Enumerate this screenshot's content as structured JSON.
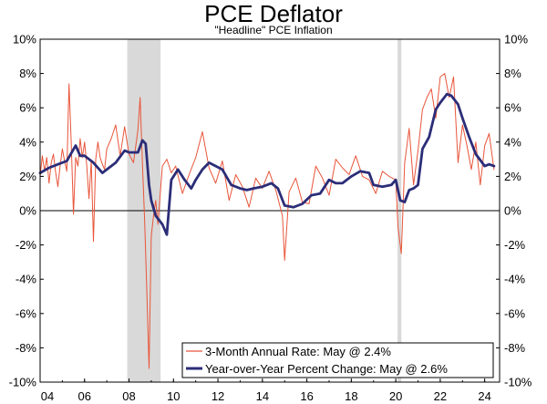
{
  "title": "PCE Deflator",
  "subtitle": "\"Headline\" PCE Inflation",
  "colors": {
    "series1": "#e8553a",
    "series2": "#2b2d78",
    "recession": "#d9d9d9",
    "zero_line": "#000000"
  },
  "chart_data": {
    "type": "line",
    "title": "PCE Deflator",
    "subtitle": "\"Headline\" PCE Inflation",
    "x_range": [
      2004.0,
      2024.67
    ],
    "ylim": [
      -10,
      10
    ],
    "y_ticks": [
      10,
      8,
      6,
      4,
      2,
      0,
      -2,
      -4,
      -6,
      -8,
      -10
    ],
    "y_tick_labels": [
      "10%",
      "8%",
      "6%",
      "4%",
      "2%",
      "0%",
      "-2%",
      "-4%",
      "-6%",
      "-8%",
      "-10%"
    ],
    "x_ticks": [
      2004,
      2006,
      2008,
      2010,
      2012,
      2014,
      2016,
      2018,
      2020,
      2022,
      2024
    ],
    "x_tick_labels": [
      "04",
      "06",
      "08",
      "10",
      "12",
      "14",
      "16",
      "18",
      "20",
      "22",
      "24"
    ],
    "recessions": [
      [
        2007.92,
        2009.42
      ],
      [
        2020.08,
        2020.25
      ]
    ],
    "legend": {
      "position": "bottom-right",
      "entries": [
        "3-Month Annual Rate: May @ 2.4%",
        "Year-over-Year Percent Change: May @ 2.6%"
      ]
    },
    "series": [
      {
        "name": "3-Month Annual Rate: May @ 2.4%",
        "x": [
          2004.0,
          2004.1,
          2004.2,
          2004.3,
          2004.4,
          2004.5,
          2004.6,
          2004.7,
          2004.8,
          2004.9,
          2005.0,
          2005.1,
          2005.2,
          2005.3,
          2005.4,
          2005.5,
          2005.6,
          2005.7,
          2005.8,
          2005.9,
          2006.0,
          2006.1,
          2006.2,
          2006.3,
          2006.4,
          2006.5,
          2006.6,
          2006.7,
          2006.8,
          2006.9,
          2007.0,
          2007.2,
          2007.4,
          2007.6,
          2007.8,
          2008.0,
          2008.2,
          2008.4,
          2008.5,
          2008.6,
          2008.7,
          2008.8,
          2008.9,
          2009.0,
          2009.1,
          2009.2,
          2009.3,
          2009.5,
          2009.7,
          2009.9,
          2010.1,
          2010.4,
          2010.7,
          2011.0,
          2011.3,
          2011.6,
          2011.9,
          2012.2,
          2012.5,
          2012.8,
          2013.1,
          2013.4,
          2013.7,
          2014.0,
          2014.3,
          2014.6,
          2014.9,
          2015.0,
          2015.2,
          2015.5,
          2015.8,
          2016.1,
          2016.4,
          2016.7,
          2017.0,
          2017.3,
          2017.6,
          2017.9,
          2018.2,
          2018.5,
          2018.8,
          2019.1,
          2019.4,
          2019.7,
          2020.0,
          2020.1,
          2020.25,
          2020.4,
          2020.6,
          2020.8,
          2021.0,
          2021.2,
          2021.4,
          2021.6,
          2021.8,
          2022.0,
          2022.2,
          2022.4,
          2022.6,
          2022.8,
          2023.0,
          2023.2,
          2023.4,
          2023.6,
          2023.8,
          2024.0,
          2024.2,
          2024.42
        ],
        "values": [
          2.0,
          3.2,
          2.3,
          3.1,
          1.6,
          2.8,
          3.3,
          2.2,
          1.4,
          2.6,
          3.6,
          2.9,
          2.3,
          7.4,
          4.0,
          -0.2,
          3.1,
          2.6,
          4.2,
          3.1,
          4.0,
          2.6,
          0.7,
          2.9,
          -1.8,
          3.0,
          4.0,
          3.1,
          2.7,
          2.4,
          3.6,
          4.2,
          5.0,
          3.2,
          4.9,
          3.3,
          2.8,
          4.7,
          6.6,
          2.8,
          -0.5,
          -4.6,
          -9.2,
          -1.5,
          -0.3,
          0.6,
          -0.8,
          2.6,
          3.0,
          2.2,
          2.6,
          1.0,
          2.1,
          3.1,
          4.6,
          2.5,
          1.6,
          2.9,
          0.6,
          2.1,
          1.4,
          0.2,
          1.9,
          1.3,
          2.3,
          1.2,
          -0.3,
          -2.9,
          1.1,
          1.9,
          0.5,
          0.4,
          2.6,
          1.9,
          0.9,
          3.0,
          2.5,
          2.1,
          3.2,
          2.0,
          1.8,
          1.0,
          2.3,
          2.0,
          1.8,
          -1.0,
          -2.5,
          2.8,
          4.8,
          1.5,
          3.5,
          5.9,
          6.6,
          7.1,
          5.4,
          7.8,
          8.0,
          6.6,
          7.8,
          2.8,
          5.0,
          3.8,
          2.4,
          4.0,
          1.5,
          3.8,
          4.5,
          2.4
        ]
      },
      {
        "name": "Year-over-Year Percent Change: May @ 2.6%",
        "x": [
          2004.0,
          2004.4,
          2004.8,
          2005.2,
          2005.6,
          2005.8,
          2006.0,
          2006.4,
          2006.8,
          2007.0,
          2007.4,
          2007.8,
          2008.0,
          2008.4,
          2008.6,
          2008.75,
          2008.9,
          2009.0,
          2009.2,
          2009.5,
          2009.7,
          2009.9,
          2010.2,
          2010.5,
          2010.8,
          2011.0,
          2011.3,
          2011.6,
          2011.9,
          2012.2,
          2012.6,
          2013.0,
          2013.3,
          2013.6,
          2014.0,
          2014.4,
          2014.7,
          2015.0,
          2015.4,
          2015.8,
          2016.2,
          2016.6,
          2017.0,
          2017.3,
          2017.6,
          2018.0,
          2018.4,
          2018.8,
          2019.0,
          2019.4,
          2019.8,
          2020.0,
          2020.2,
          2020.4,
          2020.6,
          2020.8,
          2021.0,
          2021.2,
          2021.5,
          2021.8,
          2022.0,
          2022.3,
          2022.5,
          2022.8,
          2023.0,
          2023.3,
          2023.6,
          2024.0,
          2024.2,
          2024.42
        ],
        "values": [
          2.2,
          2.5,
          2.7,
          2.9,
          3.8,
          3.2,
          3.2,
          2.8,
          2.2,
          2.4,
          2.8,
          3.5,
          3.4,
          3.4,
          4.1,
          3.9,
          1.5,
          0.6,
          -0.3,
          -0.8,
          -1.4,
          1.8,
          2.4,
          1.8,
          1.3,
          1.8,
          2.4,
          2.8,
          2.6,
          2.4,
          1.5,
          1.3,
          1.2,
          1.3,
          1.4,
          1.6,
          1.3,
          0.3,
          0.2,
          0.4,
          0.9,
          1.0,
          1.8,
          1.6,
          1.6,
          2.0,
          2.3,
          2.2,
          1.5,
          1.4,
          1.5,
          1.8,
          0.6,
          0.5,
          1.2,
          1.3,
          1.5,
          3.6,
          4.3,
          5.9,
          6.3,
          6.8,
          6.7,
          6.2,
          5.4,
          4.3,
          3.3,
          2.6,
          2.7,
          2.6
        ]
      }
    ]
  }
}
